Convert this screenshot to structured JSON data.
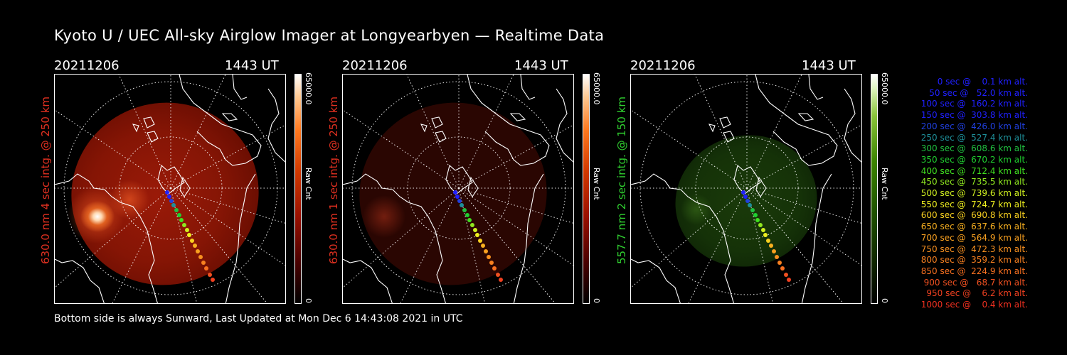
{
  "title": "Kyoto U / UEC All-sky Airglow Imager at Longyearbyen — Realtime Data",
  "footer": "Bottom side is always Sunward, Last Updated at Mon Dec  6 14:43:08 2021 in UTC",
  "panels": [
    {
      "date": "20211206",
      "time": "1443 UT",
      "ylabel": "630.0 nm 4 sec intg. @ 250 km",
      "label_color": "#e03020",
      "colorbar_max": "65000.0",
      "colorbar_min": "0",
      "colorbar_label": "Raw Cnt",
      "colormap": "red"
    },
    {
      "date": "20211206",
      "time": "1443 UT",
      "ylabel": "630.0 nm 1 sec intg. @ 250 km",
      "label_color": "#e03020",
      "colorbar_max": "65000.0",
      "colorbar_min": "0",
      "colorbar_label": "Raw Cnt",
      "colormap": "red"
    },
    {
      "date": "20211206",
      "time": "1443 UT",
      "ylabel": "557.7 nm 2 sec intg. @ 150 km",
      "label_color": "#30d030",
      "colorbar_max": "65000.0",
      "colorbar_min": "0",
      "colorbar_label": "Raw Cnt",
      "colormap": "green"
    }
  ],
  "legend": [
    {
      "text": "0 sec @    0.1 km alt.",
      "color": "#2020ff"
    },
    {
      "text": "50 sec @   52.0 km alt.",
      "color": "#2020ff"
    },
    {
      "text": "100 sec @  160.2 km alt.",
      "color": "#2020ff"
    },
    {
      "text": "150 sec @  303.8 km alt.",
      "color": "#2020ff"
    },
    {
      "text": "200 sec @  426.0 km alt.",
      "color": "#2040e0"
    },
    {
      "text": "250 sec @  527.4 km alt.",
      "color": "#1e8f99"
    },
    {
      "text": "300 sec @  608.6 km alt.",
      "color": "#20c040"
    },
    {
      "text": "350 sec @  670.2 km alt.",
      "color": "#20d030"
    },
    {
      "text": "400 sec @  712.4 km alt.",
      "color": "#40e020"
    },
    {
      "text": "450 sec @  735.5 km alt.",
      "color": "#90e820"
    },
    {
      "text": "500 sec @  739.6 km alt.",
      "color": "#d0f020"
    },
    {
      "text": "550 sec @  724.7 km alt.",
      "color": "#f0f020"
    },
    {
      "text": "600 sec @  690.8 km alt.",
      "color": "#f8d020"
    },
    {
      "text": "650 sec @  637.6 km alt.",
      "color": "#f8b020"
    },
    {
      "text": "700 sec @  564.9 km alt.",
      "color": "#f8a020"
    },
    {
      "text": "750 sec @  472.3 km alt.",
      "color": "#f89020"
    },
    {
      "text": "800 sec @  359.2 km alt.",
      "color": "#f88020"
    },
    {
      "text": "850 sec @  224.9 km alt.",
      "color": "#f87020"
    },
    {
      "text": "900 sec @   68.7 km alt.",
      "color": "#f05020"
    },
    {
      "text": "950 sec @    6.2 km alt.",
      "color": "#f04020"
    },
    {
      "text": "1000 sec @    0.4 km alt.",
      "color": "#f03020"
    }
  ]
}
